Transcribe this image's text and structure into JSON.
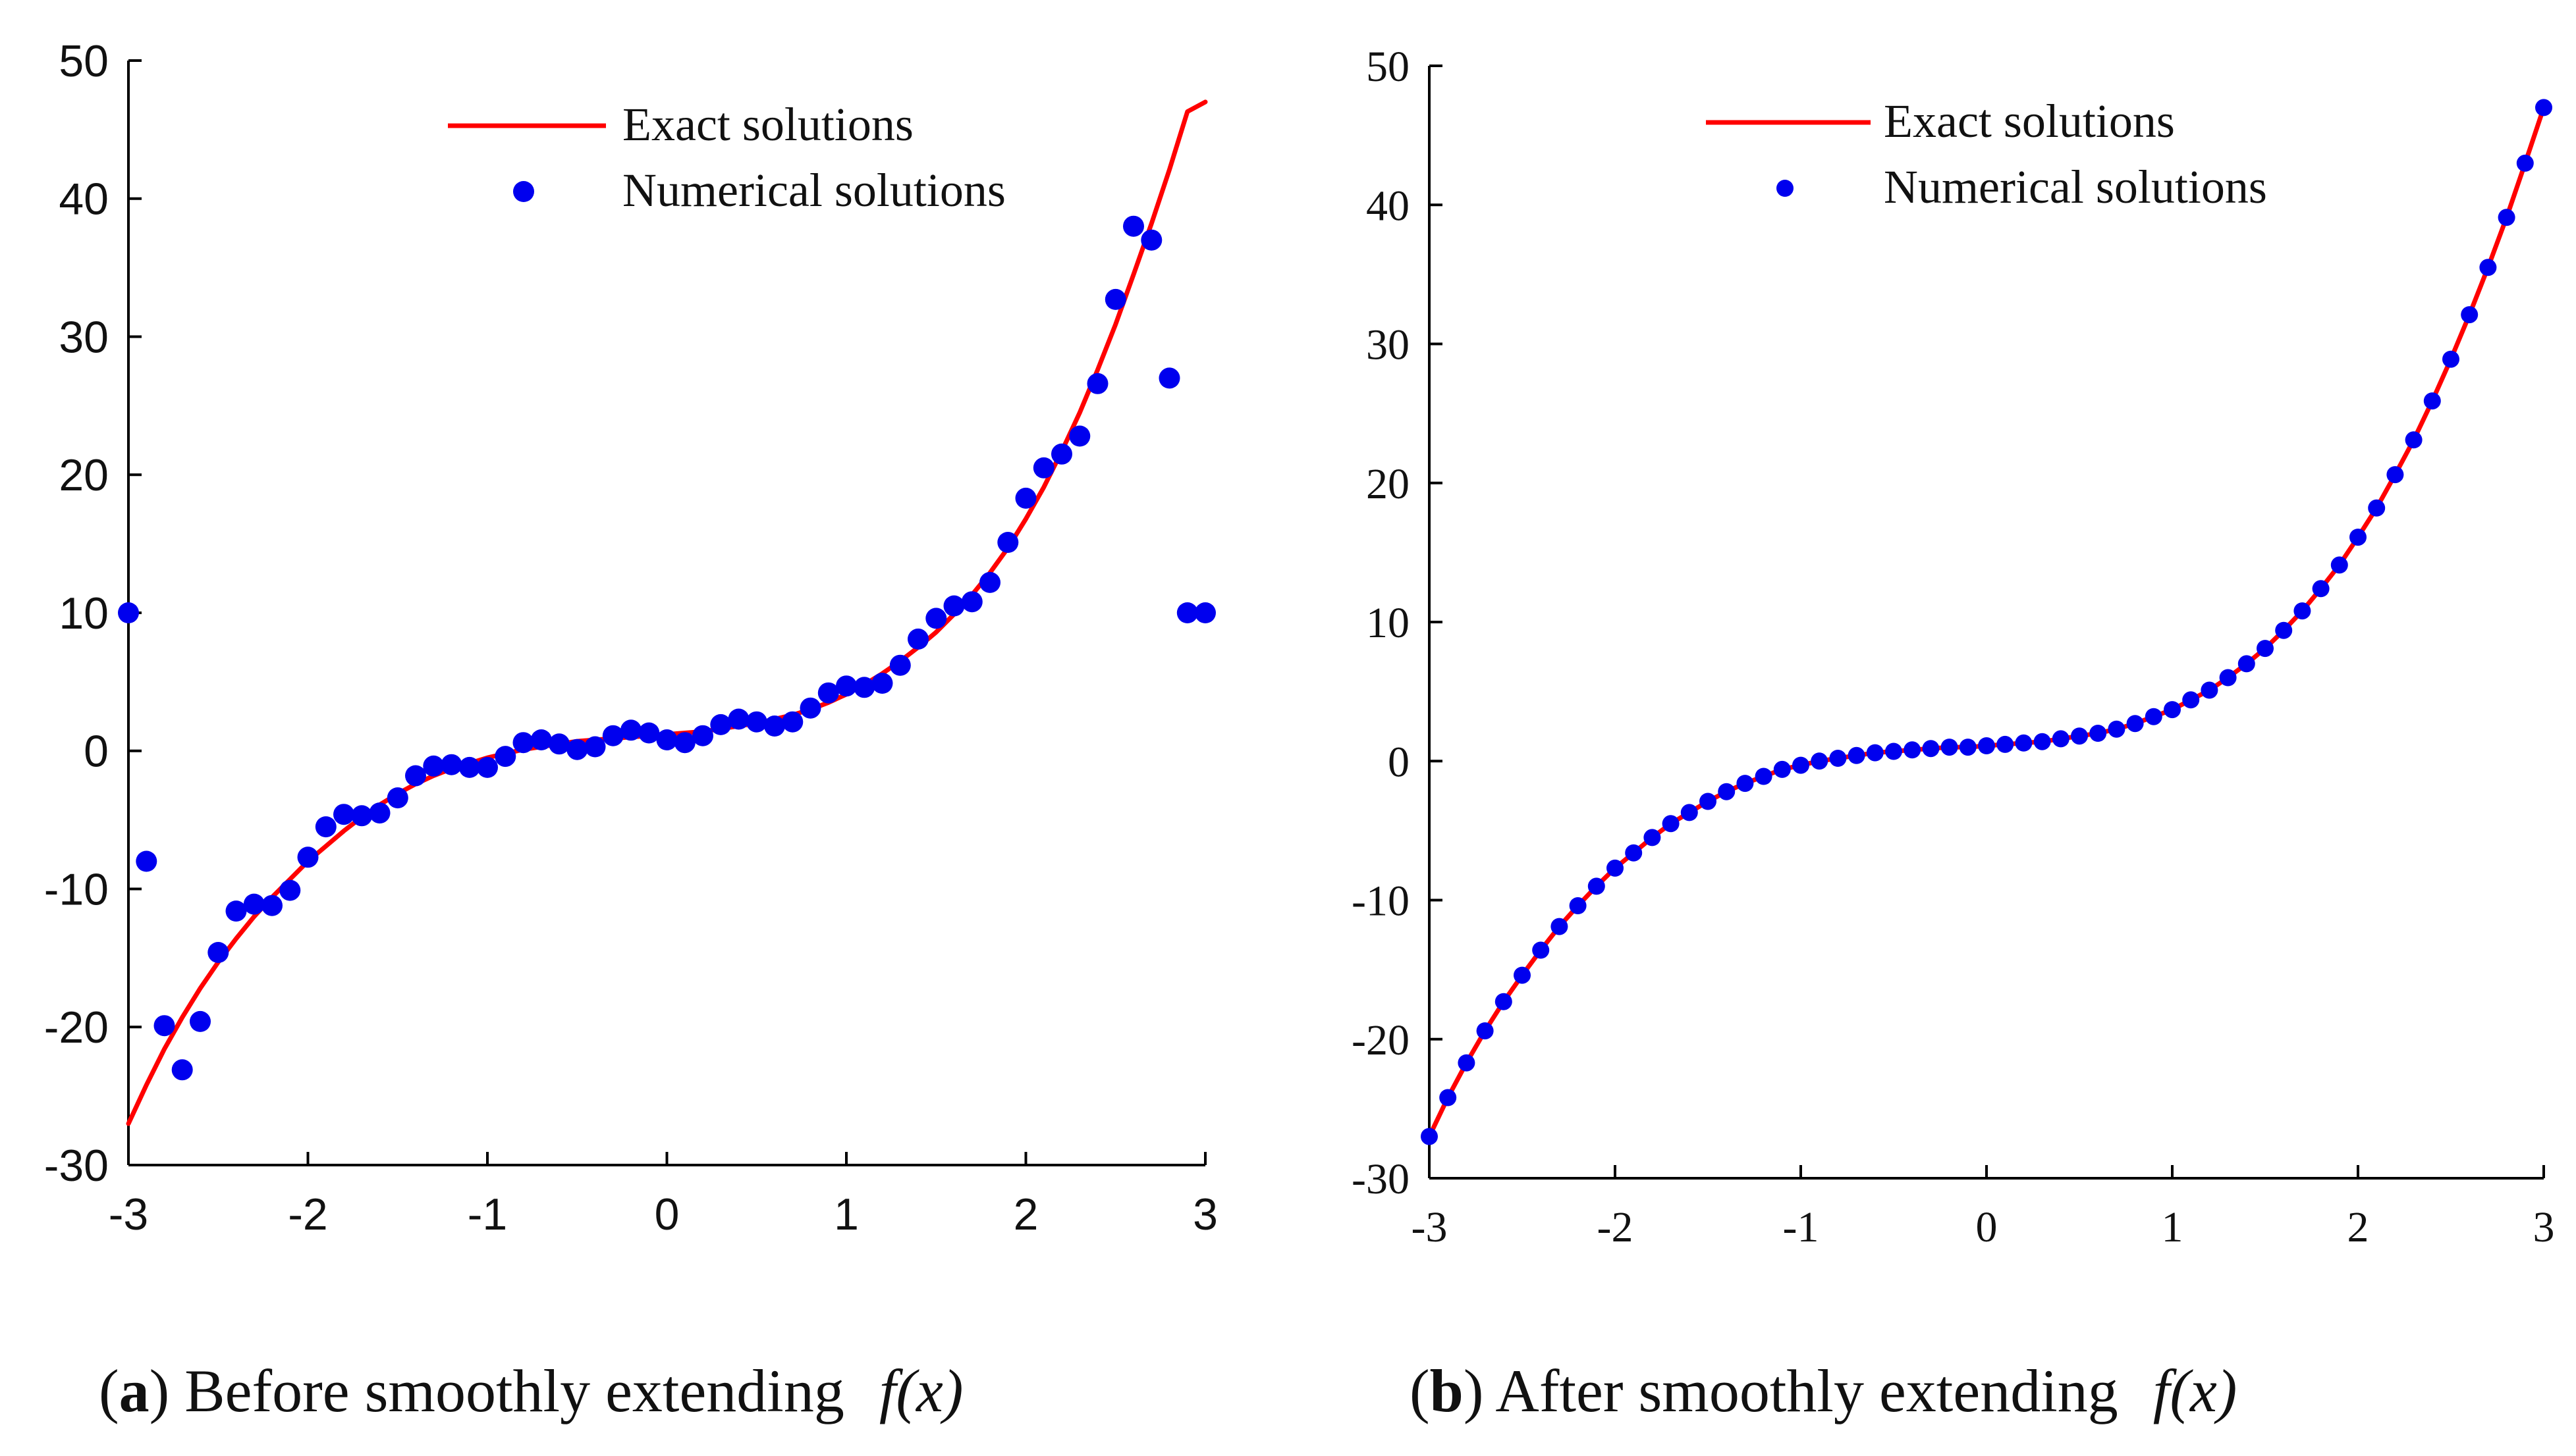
{
  "chart_data": [
    {
      "type": "line",
      "id": "a",
      "xlim": [
        -3,
        3
      ],
      "ylim": [
        -30,
        50
      ],
      "xticks": [
        -3,
        -2,
        -1,
        0,
        1,
        2,
        3
      ],
      "yticks": [
        -30,
        -20,
        -10,
        0,
        10,
        20,
        30,
        40,
        50
      ],
      "xtick_labels": [
        "-3",
        "-2",
        "-1",
        "0",
        "1",
        "2",
        "3"
      ],
      "ytick_labels": [
        "-30",
        "-20",
        "-10",
        "0",
        "10",
        "20",
        "30",
        "40",
        "50"
      ],
      "legend": [
        "Exact solutions",
        "Numerical solutions"
      ],
      "legend_position": "top",
      "series": [
        {
          "name": "Exact solutions",
          "kind": "line",
          "color": "#ff0000",
          "x": [
            -3.0,
            -2.9,
            -2.8,
            -2.7,
            -2.6,
            -2.5,
            -2.4,
            -2.3,
            -2.2,
            -2.1,
            -2.0,
            -1.9,
            -1.8,
            -1.7,
            -1.6,
            -1.5,
            -1.4,
            -1.3,
            -1.2,
            -1.1,
            -1.0,
            -0.9,
            -0.8,
            -0.7,
            -0.6,
            -0.5,
            -0.4,
            -0.3,
            -0.2,
            -0.1,
            0.0,
            0.1,
            0.2,
            0.3,
            0.4,
            0.5,
            0.6,
            0.7,
            0.8,
            0.9,
            1.0,
            1.1,
            1.2,
            1.3,
            1.4,
            1.5,
            1.6,
            1.7,
            1.8,
            1.9,
            2.0,
            2.1,
            2.2,
            2.3,
            2.4,
            2.5,
            2.6,
            2.7,
            2.8,
            2.9,
            3.0
          ],
          "y": [
            -27.0,
            -24.2,
            -21.6,
            -19.3,
            -17.2,
            -15.3,
            -13.6,
            -12.0,
            -10.6,
            -9.3,
            -8.0,
            -6.9,
            -5.8,
            -4.8,
            -3.9,
            -3.1,
            -2.4,
            -1.8,
            -1.3,
            -0.9,
            -0.5,
            -0.2,
            0.1,
            0.3,
            0.5,
            0.7,
            0.8,
            0.9,
            1.0,
            1.1,
            1.2,
            1.3,
            1.4,
            1.6,
            1.8,
            2.0,
            2.3,
            2.6,
            3.0,
            3.5,
            4.1,
            4.8,
            5.6,
            6.5,
            7.5,
            8.6,
            9.9,
            11.3,
            12.9,
            14.7,
            16.8,
            19.1,
            21.7,
            24.5,
            27.6,
            30.9,
            34.5,
            38.2,
            42.1,
            46.3,
            47.0
          ]
        },
        {
          "name": "Numerical solutions",
          "kind": "scatter",
          "color": "#0000ee",
          "x": [
            -3.0,
            -2.9,
            -2.8,
            -2.7,
            -2.6,
            -2.5,
            -2.4,
            -2.3,
            -2.2,
            -2.1,
            -2.0,
            -1.9,
            -1.8,
            -1.7,
            -1.6,
            -1.5,
            -1.4,
            -1.3,
            -1.2,
            -1.1,
            -1.0,
            -0.9,
            -0.8,
            -0.7,
            -0.6,
            -0.5,
            -0.4,
            -0.3,
            -0.2,
            -0.1,
            0.0,
            0.1,
            0.2,
            0.3,
            0.4,
            0.5,
            0.6,
            0.7,
            0.8,
            0.9,
            1.0,
            1.1,
            1.2,
            1.3,
            1.4,
            1.5,
            1.6,
            1.7,
            1.8,
            1.9,
            2.0,
            2.1,
            2.2,
            2.3,
            2.4,
            2.5,
            2.6,
            2.7,
            2.8,
            2.9,
            3.0
          ],
          "y": [
            10.0,
            -8.0,
            -19.9,
            -23.1,
            -19.6,
            -14.6,
            -11.6,
            -11.1,
            -11.2,
            -10.1,
            -7.7,
            -5.5,
            -4.6,
            -4.7,
            -4.5,
            -3.4,
            -1.8,
            -1.1,
            -1.0,
            -1.2,
            -1.2,
            -0.4,
            0.6,
            0.8,
            0.5,
            0.1,
            0.3,
            1.1,
            1.5,
            1.3,
            0.8,
            0.6,
            1.1,
            1.9,
            2.3,
            2.1,
            1.8,
            2.1,
            3.1,
            4.2,
            4.7,
            4.6,
            4.9,
            6.2,
            8.1,
            9.6,
            10.5,
            10.8,
            12.2,
            15.1,
            18.3,
            20.5,
            21.5,
            22.8,
            26.6,
            32.7,
            38.0,
            37.0,
            27.0,
            10.0,
            10.0
          ]
        }
      ]
    },
    {
      "type": "line",
      "id": "b",
      "xlim": [
        -3,
        3
      ],
      "ylim": [
        -30,
        50
      ],
      "xticks": [
        -3,
        -2,
        -1,
        0,
        1,
        2,
        3
      ],
      "yticks": [
        -30,
        -20,
        -10,
        0,
        10,
        20,
        30,
        40,
        50
      ],
      "xtick_labels": [
        "-3",
        "-2",
        "-1",
        "0",
        "1",
        "2",
        "3"
      ],
      "ytick_labels": [
        "-30",
        "-20",
        "-10",
        "0",
        "10",
        "20",
        "30",
        "40",
        "50"
      ],
      "legend": [
        "Exact solutions",
        "Numerical solutions"
      ],
      "legend_position": "top",
      "series": [
        {
          "name": "Exact solutions",
          "kind": "line",
          "color": "#ff0000",
          "x": [
            -3.0,
            -2.9,
            -2.8,
            -2.7,
            -2.6,
            -2.5,
            -2.4,
            -2.3,
            -2.2,
            -2.1,
            -2.0,
            -1.9,
            -1.8,
            -1.7,
            -1.6,
            -1.5,
            -1.4,
            -1.3,
            -1.2,
            -1.1,
            -1.0,
            -0.9,
            -0.8,
            -0.7,
            -0.6,
            -0.5,
            -0.4,
            -0.3,
            -0.2,
            -0.1,
            0.0,
            0.1,
            0.2,
            0.3,
            0.4,
            0.5,
            0.6,
            0.7,
            0.8,
            0.9,
            1.0,
            1.1,
            1.2,
            1.3,
            1.4,
            1.5,
            1.6,
            1.7,
            1.8,
            1.9,
            2.0,
            2.1,
            2.2,
            2.3,
            2.4,
            2.5,
            2.6,
            2.7,
            2.8,
            2.9,
            3.0
          ],
          "y": [
            -27.0,
            -24.2,
            -21.7,
            -19.4,
            -17.3,
            -15.4,
            -13.6,
            -11.9,
            -10.4,
            -9.0,
            -7.7,
            -6.6,
            -5.5,
            -4.5,
            -3.7,
            -2.9,
            -2.2,
            -1.6,
            -1.1,
            -0.6,
            -0.3,
            0.0,
            0.2,
            0.4,
            0.6,
            0.7,
            0.8,
            0.9,
            1.0,
            1.0,
            1.1,
            1.2,
            1.3,
            1.4,
            1.6,
            1.8,
            2.0,
            2.3,
            2.7,
            3.2,
            3.7,
            4.4,
            5.1,
            6.0,
            7.0,
            8.1,
            9.4,
            10.8,
            12.4,
            14.1,
            16.1,
            18.2,
            20.6,
            23.1,
            25.9,
            28.9,
            32.1,
            35.5,
            39.1,
            43.0,
            47.0
          ]
        },
        {
          "name": "Numerical solutions",
          "kind": "scatter",
          "color": "#0000ee",
          "x": [
            -3.0,
            -2.9,
            -2.8,
            -2.7,
            -2.6,
            -2.5,
            -2.4,
            -2.3,
            -2.2,
            -2.1,
            -2.0,
            -1.9,
            -1.8,
            -1.7,
            -1.6,
            -1.5,
            -1.4,
            -1.3,
            -1.2,
            -1.1,
            -1.0,
            -0.9,
            -0.8,
            -0.7,
            -0.6,
            -0.5,
            -0.4,
            -0.3,
            -0.2,
            -0.1,
            0.0,
            0.1,
            0.2,
            0.3,
            0.4,
            0.5,
            0.6,
            0.7,
            0.8,
            0.9,
            1.0,
            1.1,
            1.2,
            1.3,
            1.4,
            1.5,
            1.6,
            1.7,
            1.8,
            1.9,
            2.0,
            2.1,
            2.2,
            2.3,
            2.4,
            2.5,
            2.6,
            2.7,
            2.8,
            2.9,
            3.0
          ],
          "y": [
            -27.0,
            -24.2,
            -21.7,
            -19.4,
            -17.3,
            -15.4,
            -13.6,
            -11.9,
            -10.4,
            -9.0,
            -7.7,
            -6.6,
            -5.5,
            -4.5,
            -3.7,
            -2.9,
            -2.2,
            -1.6,
            -1.1,
            -0.6,
            -0.3,
            0.0,
            0.2,
            0.4,
            0.6,
            0.7,
            0.8,
            0.9,
            1.0,
            1.0,
            1.1,
            1.2,
            1.3,
            1.4,
            1.6,
            1.8,
            2.0,
            2.3,
            2.7,
            3.2,
            3.7,
            4.4,
            5.1,
            6.0,
            7.0,
            8.1,
            9.4,
            10.8,
            12.4,
            14.1,
            16.1,
            18.2,
            20.6,
            23.1,
            25.9,
            28.9,
            32.1,
            35.5,
            39.1,
            43.0,
            47.0
          ]
        }
      ]
    }
  ],
  "captions": {
    "a": {
      "letter": "a",
      "text": "Before smoothly extending",
      "fx": "f(x)"
    },
    "b": {
      "letter": "b",
      "text": "After smoothly extending",
      "fx": "f(x)"
    }
  }
}
